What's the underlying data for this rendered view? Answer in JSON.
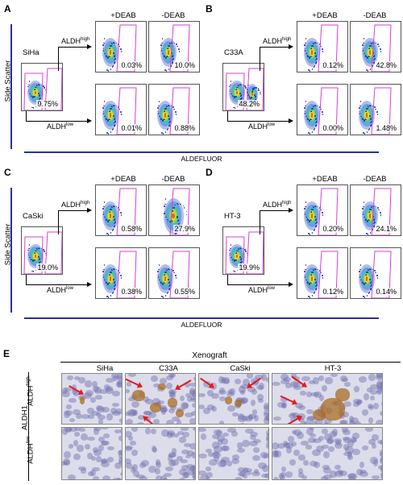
{
  "panels": [
    {
      "letter": "A",
      "cell_line": "SiHa",
      "parent_pct": "9.75%",
      "high_deab": "0.03%",
      "high_nodeab": "10.0%",
      "low_deab": "0.01%",
      "low_nodeab": "0.88%"
    },
    {
      "letter": "B",
      "cell_line": "C33A",
      "parent_pct": "48.2%",
      "high_deab": "0.12%",
      "high_nodeab": "42.8%",
      "low_deab": "0.00%",
      "low_nodeab": "1.48%"
    },
    {
      "letter": "C",
      "cell_line": "CaSki",
      "parent_pct": "19.0%",
      "high_deab": "0.58%",
      "high_nodeab": "27.9%",
      "low_deab": "0.38%",
      "low_nodeab": "0.55%"
    },
    {
      "letter": "D",
      "cell_line": "HT-3",
      "parent_pct": "19.9%",
      "high_deab": "0.20%",
      "high_nodeab": "24.1%",
      "low_deab": "0.12%",
      "low_nodeab": "0.14%"
    }
  ],
  "labels": {
    "plus_deab": "+DEAB",
    "minus_deab": "-DEAB",
    "aldh": "ALDH",
    "high_sup": "high",
    "low_sup": "low",
    "side_scatter": "Side Scatter",
    "aldefluor": "ALDEFLUOR"
  },
  "panel_e": {
    "letter": "E",
    "title": "Xenograft",
    "columns": [
      "SiHa",
      "C33A",
      "CaSki",
      "HT-3"
    ],
    "row_group_label": "ALDH1",
    "row_high": "ALDH",
    "row_high_sup": "high",
    "row_low": "ALDH",
    "row_low_sup": "low"
  },
  "colors": {
    "gate": "#d43fd4",
    "axis": "#2b2f9e",
    "arrow": "#e41a1c",
    "ihc_background": "#dcdcea",
    "ihc_stain": "#aa6e23"
  }
}
